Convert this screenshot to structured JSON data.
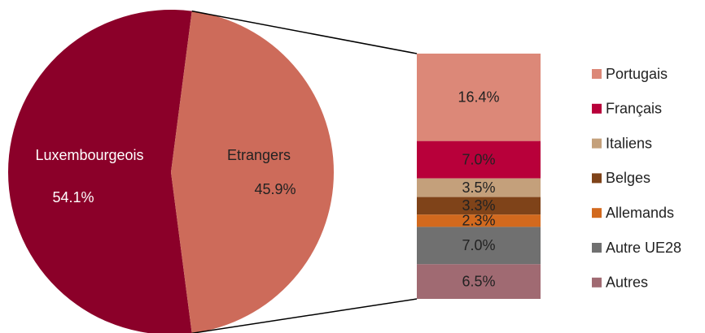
{
  "chart_data": {
    "type": "pie",
    "categories": [
      "Luxembourgeois",
      "Etrangers"
    ],
    "values": [
      54.1,
      45.9
    ],
    "value_labels": [
      "54.1%",
      "45.9%"
    ],
    "colors": [
      "#8b0029",
      "#cd6b5a"
    ],
    "bar": {
      "categories": [
        "Portugais",
        "Français",
        "Italiens",
        "Belges",
        "Allemands",
        "Autre UE28",
        "Autres"
      ],
      "values": [
        16.4,
        7.0,
        3.5,
        3.3,
        2.3,
        7.0,
        6.5
      ],
      "value_labels": [
        "16.4%",
        "7.0%",
        "3.5%",
        "3.3%",
        "2.3%",
        "7.0%",
        "6.5%"
      ],
      "colors": [
        "#dc8878",
        "#b8003a",
        "#c4a07b",
        "#7f4319",
        "#d2691e",
        "#707070",
        "#a06a72"
      ]
    }
  }
}
